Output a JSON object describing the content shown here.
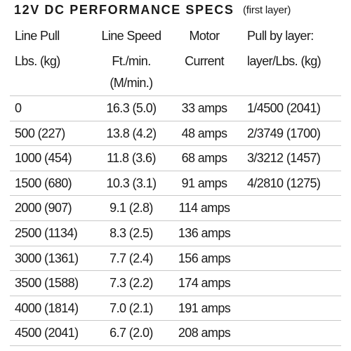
{
  "title": {
    "main": "12V DC PERFORMANCE SPECS",
    "note": "(first layer)"
  },
  "table": {
    "headers": [
      [
        "Line Pull",
        "Lbs. (kg)"
      ],
      [
        "Line Speed",
        "Ft./min.",
        "(M/min.)"
      ],
      [
        "Motor",
        "Current"
      ],
      [
        "Pull by layer:",
        "layer/Lbs. (kg)"
      ]
    ],
    "rows": [
      [
        "0",
        "16.3 (5.0)",
        "33 amps",
        "1/4500 (2041)"
      ],
      [
        "500 (227)",
        "13.8 (4.2)",
        "48 amps",
        "2/3749 (1700)"
      ],
      [
        "1000 (454)",
        "11.8 (3.6)",
        "68 amps",
        "3/3212 (1457)"
      ],
      [
        "1500 (680)",
        "10.3 (3.1)",
        "91 amps",
        "4/2810 (1275)"
      ],
      [
        "2000 (907)",
        "9.1 (2.8)",
        "114 amps"
      ],
      [
        "2500 (1134)",
        "8.3 (2.5)",
        "136 amps"
      ],
      [
        "3000 (1361)",
        "7.7 (2.4)",
        "156 amps"
      ],
      [
        "3500 (1588)",
        "7.3 (2.2)",
        "174 amps"
      ],
      [
        "4000 (1814)",
        "7.0 (2.1)",
        "191 amps"
      ],
      [
        "4500 (2041)",
        "6.7 (2.0)",
        "208 amps"
      ]
    ]
  }
}
